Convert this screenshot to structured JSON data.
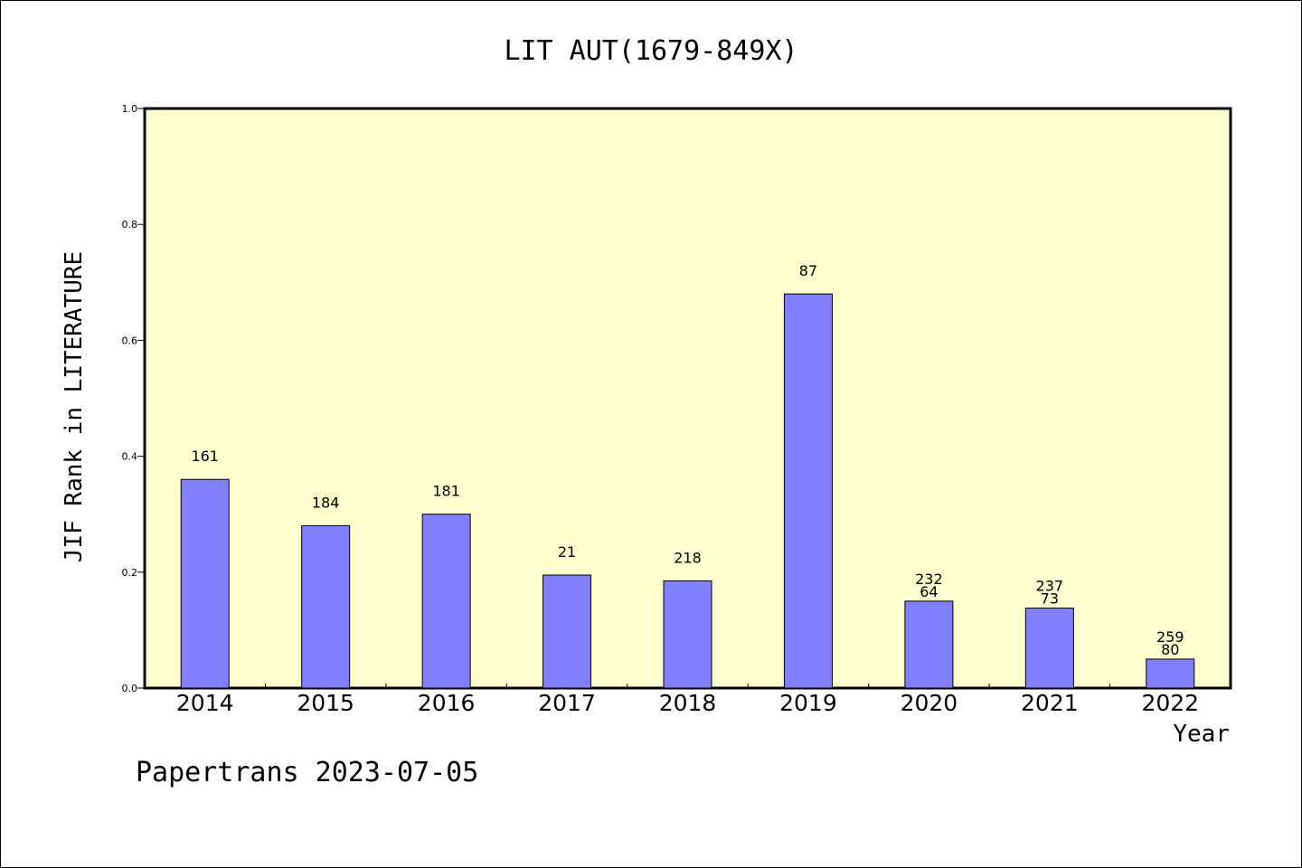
{
  "chart_data": {
    "type": "bar",
    "title": "LIT AUT(1679-849X)",
    "xlabel": "Year",
    "ylabel": "JIF Rank in LITERATURE",
    "ylim": [
      0,
      1.0
    ],
    "yticks": [
      "0.0",
      "0.2",
      "0.4",
      "0.6",
      "0.8",
      "1.0"
    ],
    "grid": false,
    "categories": [
      "2014",
      "2015",
      "2016",
      "2017",
      "2018",
      "2019",
      "2020",
      "2021",
      "2022"
    ],
    "values": [
      0.36,
      0.28,
      0.3,
      0.195,
      0.185,
      0.68,
      0.15,
      0.138,
      0.05
    ],
    "bar_labels": [
      [
        "161"
      ],
      [
        "184"
      ],
      [
        "181"
      ],
      [
        "21"
      ],
      [
        "218"
      ],
      [
        "87"
      ],
      [
        "232",
        "64"
      ],
      [
        "237",
        "73"
      ],
      [
        "259",
        "80"
      ]
    ],
    "colors": {
      "bar": "#8080ff",
      "plot_bg": "#ffffd0"
    }
  },
  "footer": "Papertrans 2023-07-05"
}
